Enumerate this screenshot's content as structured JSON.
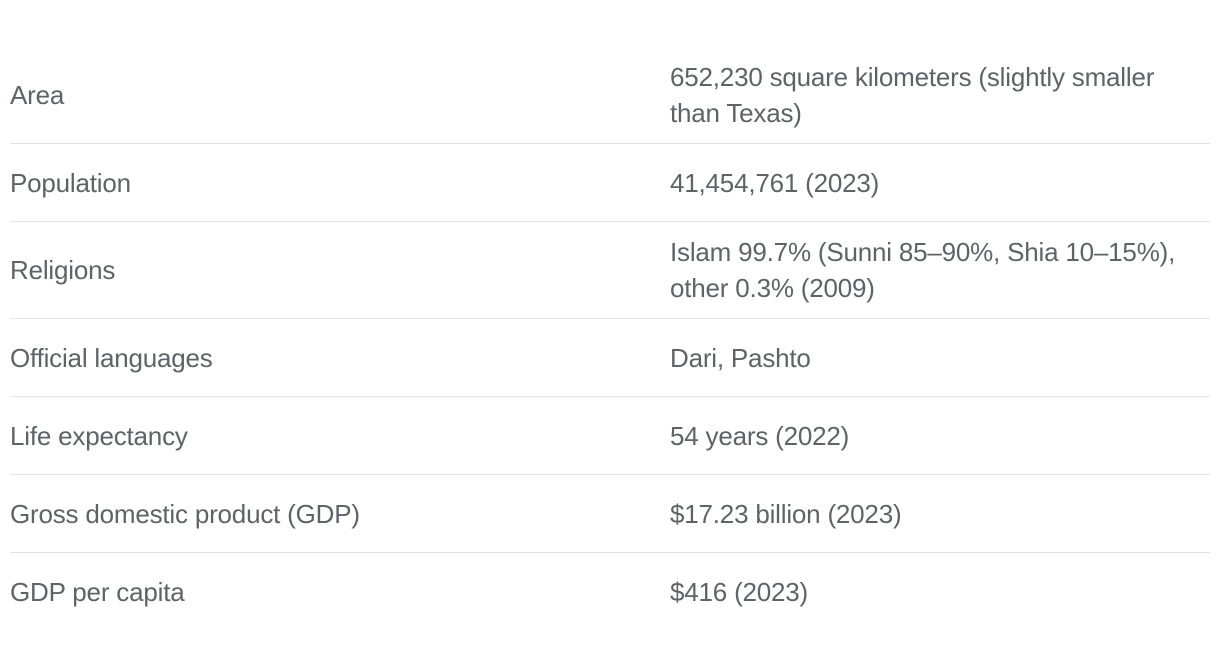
{
  "facts": [
    {
      "label": "Area",
      "value": "652,230 square kilometers (slightly smaller than Texas)"
    },
    {
      "label": "Population",
      "value": "41,454,761 (2023)"
    },
    {
      "label": "Religions",
      "value": "Islam 99.7% (Sunni 85–90%, Shia 10–15%), other 0.3% (2009)"
    },
    {
      "label": "Official languages",
      "value": "Dari, Pashto"
    },
    {
      "label": "Life expectancy",
      "value": "54 years (2022)"
    },
    {
      "label": "Gross domestic product (GDP)",
      "value": "$17.23 billion (2023)"
    },
    {
      "label": "GDP per capita",
      "value": "$416 (2023)"
    }
  ]
}
